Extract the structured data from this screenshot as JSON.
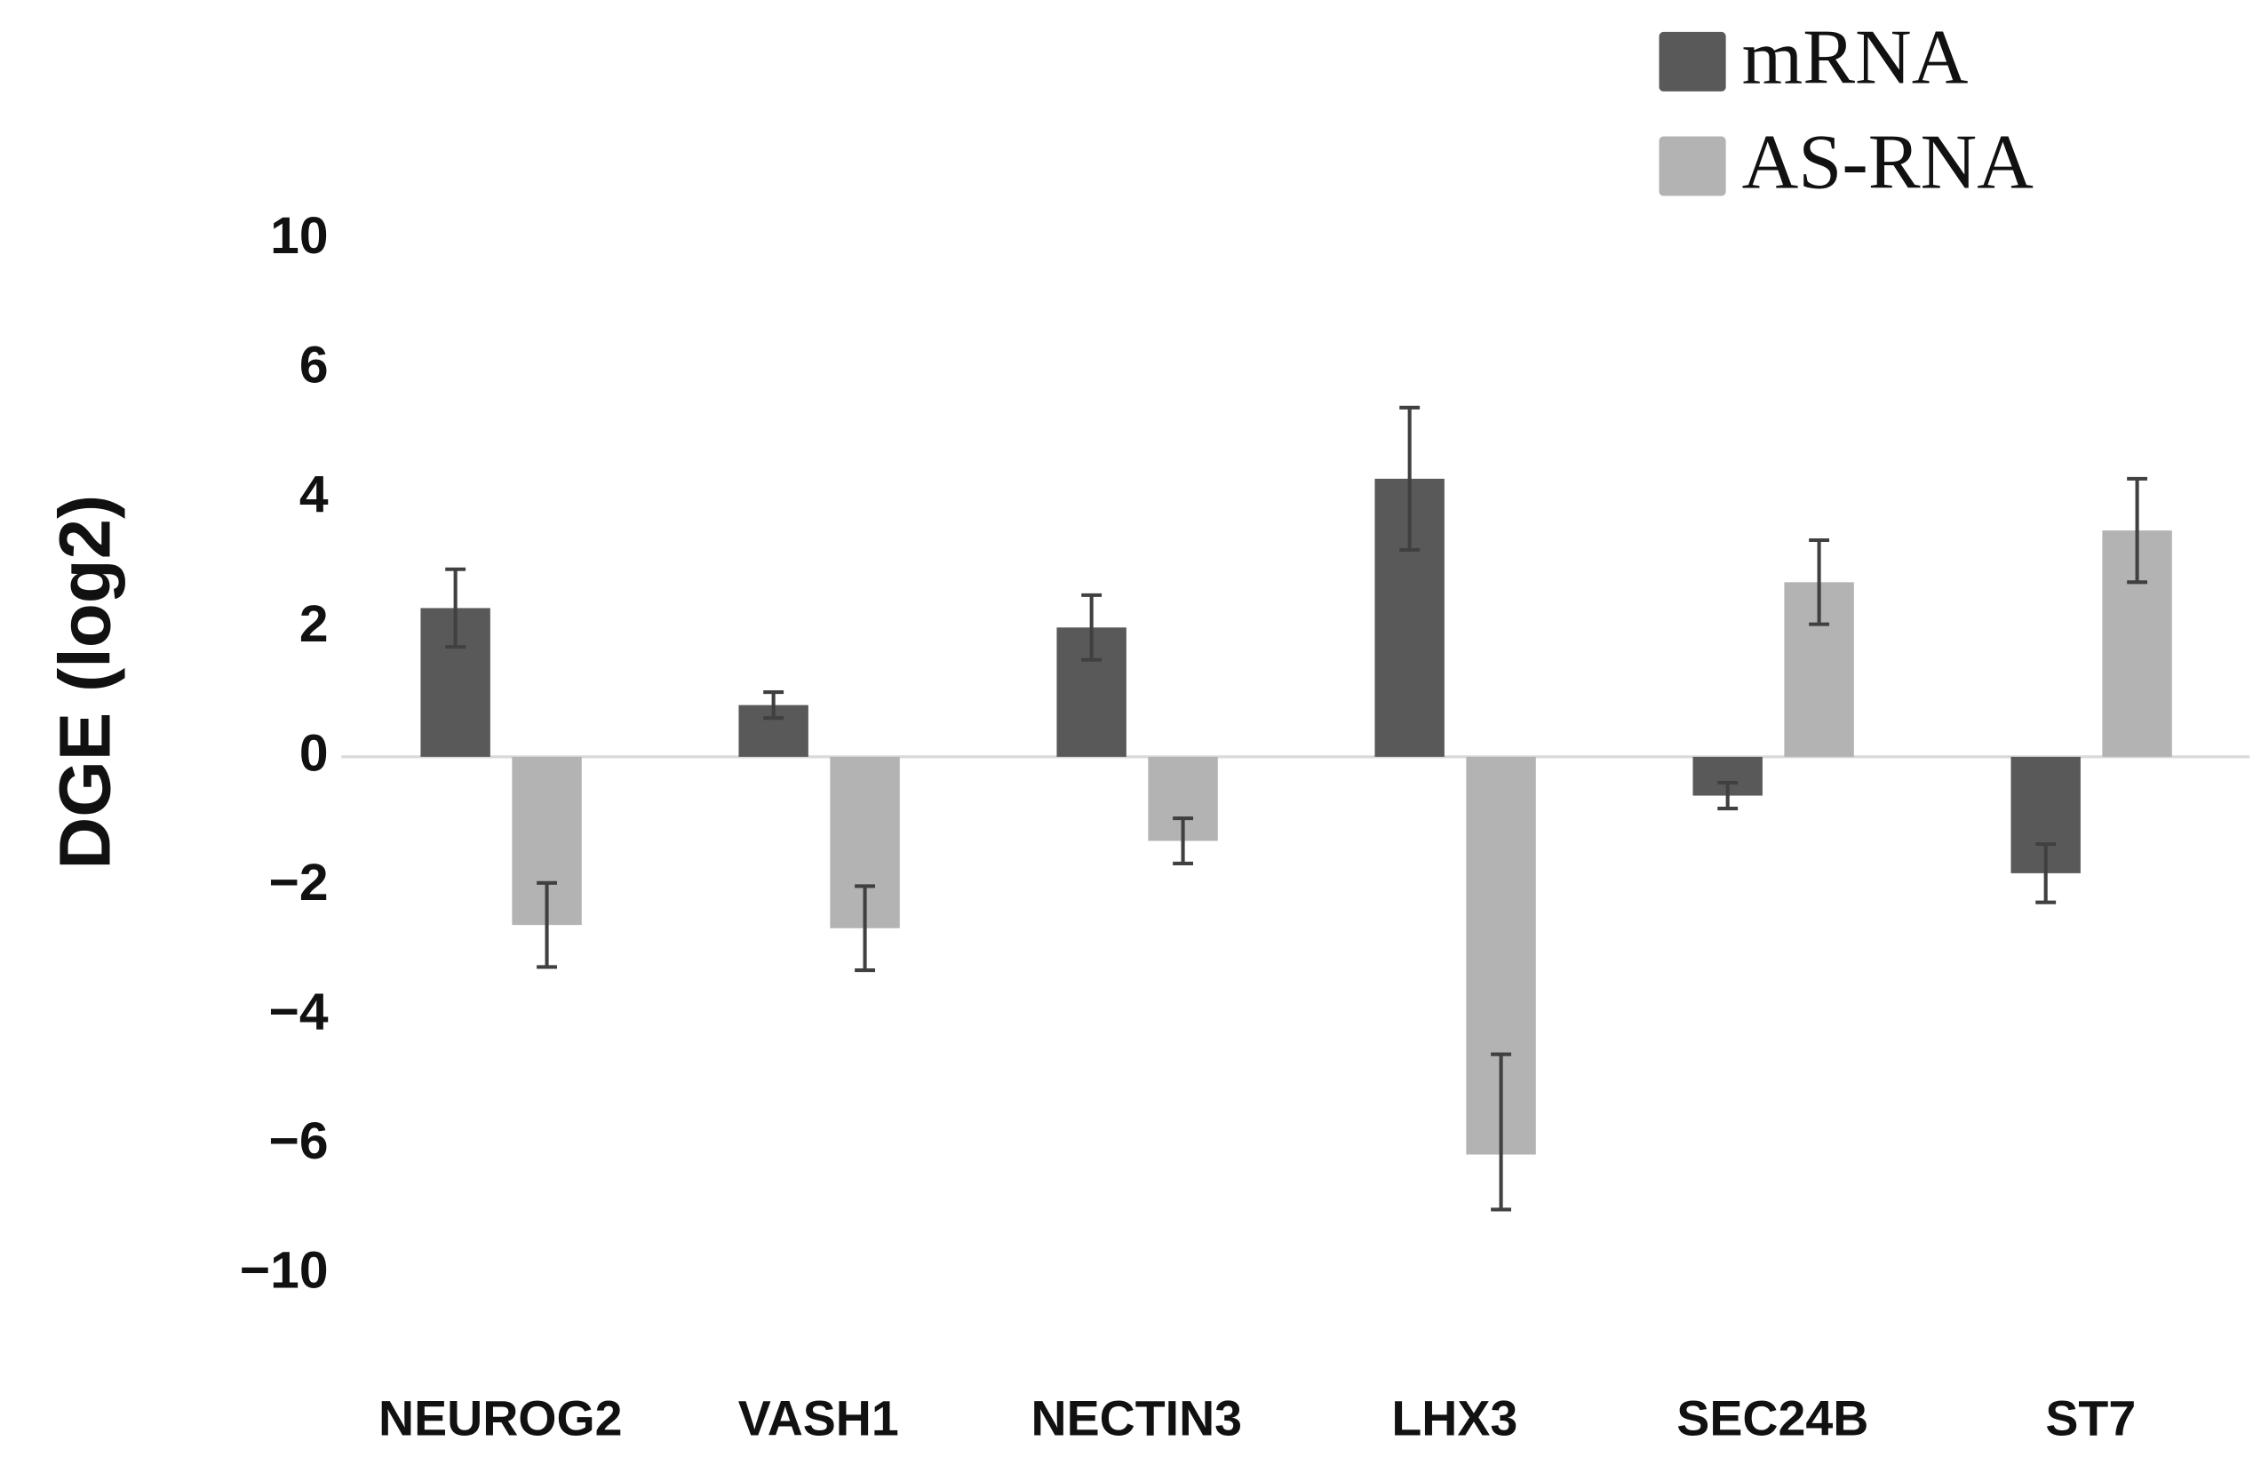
{
  "chart_data": {
    "type": "bar",
    "y_label": "DGE (log2)",
    "categories": [
      "NEUROG2",
      "VASH1",
      "NECTIN3",
      "LHX3",
      "SEC24B",
      "ST7"
    ],
    "series": [
      {
        "name": "mRNA",
        "color": "#595959",
        "values": [
          2.3,
          0.8,
          2.0,
          4.3,
          -0.6,
          -1.8
        ],
        "errors": [
          0.6,
          0.2,
          0.5,
          1.1,
          0.2,
          0.45
        ]
      },
      {
        "name": "AS-RNA",
        "color": "#b3b3b3",
        "values": [
          -2.6,
          -2.65,
          -1.3,
          -6.3,
          2.7,
          3.5
        ],
        "errors": [
          0.65,
          0.65,
          0.35,
          1.7,
          0.65,
          0.8
        ]
      }
    ],
    "ylim": [
      -10,
      10
    ],
    "yticks": [
      {
        "value": -10,
        "label": "−10"
      },
      {
        "value": -6,
        "label": "−6"
      },
      {
        "value": -4,
        "label": "−4"
      },
      {
        "value": -2,
        "label": "−2"
      },
      0,
      2,
      4,
      6,
      10
    ],
    "legend": "top-right"
  }
}
